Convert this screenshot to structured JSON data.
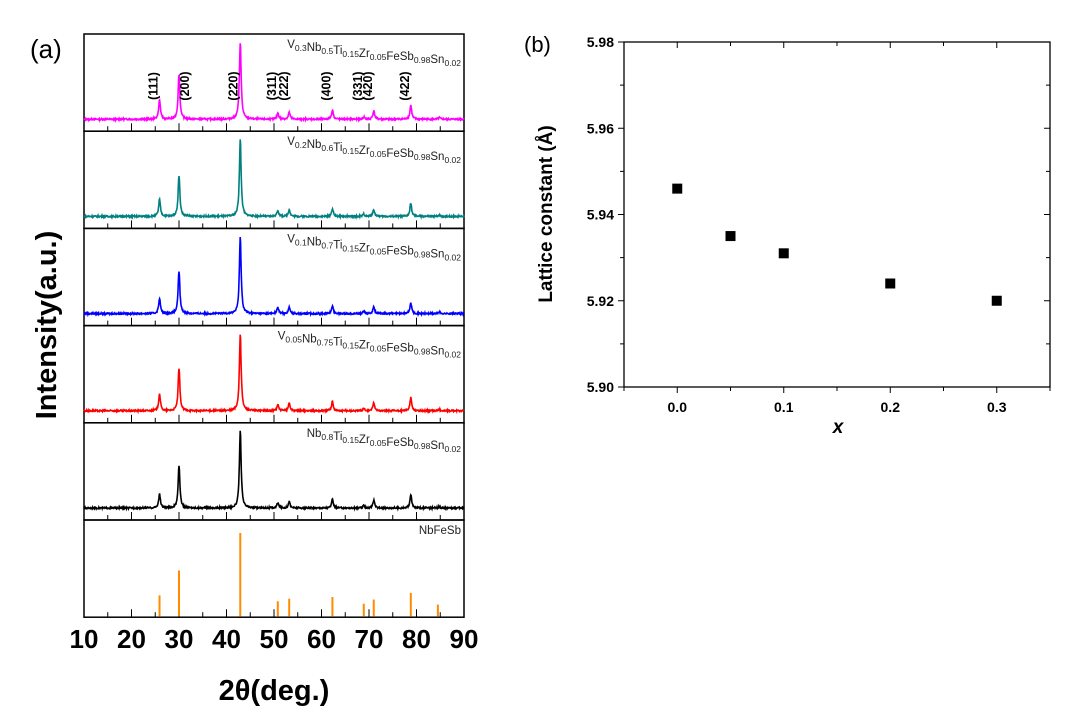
{
  "chart_data": [
    {
      "panel_label": "(a)",
      "type": "line",
      "xlabel": "2θ(deg.)",
      "ylabel": "Intensity(a.u.)",
      "xlim": [
        10,
        90
      ],
      "xticks": [
        10,
        20,
        30,
        40,
        50,
        60,
        70,
        80,
        90
      ],
      "grid": false,
      "stacked_panels": true,
      "miller_indices": [
        {
          "label": "(111)",
          "x": 25.9
        },
        {
          "label": "(200)",
          "x": 30.0
        },
        {
          "label": "(220)",
          "x": 42.9
        },
        {
          "label": "(311)",
          "x": 50.8
        },
        {
          "label": "(222)",
          "x": 53.2
        },
        {
          "label": "(400)",
          "x": 62.3
        },
        {
          "label": "(331)",
          "x": 68.9
        },
        {
          "label": "(420)",
          "x": 71.0
        },
        {
          "label": "(422)",
          "x": 78.8
        }
      ],
      "series": [
        {
          "name_parts": [
            [
              "V",
              "0.3"
            ],
            [
              "Nb",
              "0.5"
            ],
            [
              "Ti",
              "0.15"
            ],
            [
              "Zr",
              "0.05"
            ],
            [
              "FeSb",
              "0.98"
            ],
            [
              "Sn",
              "0.02"
            ]
          ],
          "color": "#ff00ff",
          "style": "pattern",
          "peaks": [
            [
              25.9,
              0.25
            ],
            [
              30.0,
              0.58
            ],
            [
              42.9,
              1.0
            ],
            [
              50.8,
              0.08
            ],
            [
              53.2,
              0.09
            ],
            [
              62.3,
              0.12
            ],
            [
              68.9,
              0.03
            ],
            [
              71.0,
              0.11
            ],
            [
              78.8,
              0.18
            ],
            [
              84.8,
              0.02
            ]
          ]
        },
        {
          "name_parts": [
            [
              "V",
              "0.2"
            ],
            [
              "Nb",
              "0.6"
            ],
            [
              "Ti",
              "0.15"
            ],
            [
              "Zr",
              "0.05"
            ],
            [
              "FeSb",
              "0.98"
            ],
            [
              "Sn",
              "0.02"
            ]
          ],
          "color": "#008080",
          "style": "pattern",
          "peaks": [
            [
              25.9,
              0.22
            ],
            [
              30.0,
              0.53
            ],
            [
              42.9,
              1.0
            ],
            [
              50.8,
              0.08
            ],
            [
              53.2,
              0.09
            ],
            [
              62.3,
              0.1
            ],
            [
              68.9,
              0.03
            ],
            [
              71.0,
              0.09
            ],
            [
              78.8,
              0.17
            ],
            [
              84.8,
              0.02
            ]
          ]
        },
        {
          "name_parts": [
            [
              "V",
              "0.1"
            ],
            [
              "Nb",
              "0.7"
            ],
            [
              "Ti",
              "0.15"
            ],
            [
              "Zr",
              "0.05"
            ],
            [
              "FeSb",
              "0.98"
            ],
            [
              "Sn",
              "0.02"
            ]
          ],
          "color": "#0000ff",
          "style": "pattern",
          "peaks": [
            [
              25.9,
              0.2
            ],
            [
              30.0,
              0.55
            ],
            [
              42.9,
              1.0
            ],
            [
              50.8,
              0.08
            ],
            [
              53.2,
              0.08
            ],
            [
              62.3,
              0.1
            ],
            [
              68.9,
              0.03
            ],
            [
              71.0,
              0.09
            ],
            [
              78.8,
              0.14
            ],
            [
              84.8,
              0.02
            ]
          ]
        },
        {
          "name_parts": [
            [
              "V",
              "0.05"
            ],
            [
              "Nb",
              "0.75"
            ],
            [
              "Ti",
              "0.15"
            ],
            [
              "Zr",
              "0.05"
            ],
            [
              "FeSb",
              "0.98"
            ],
            [
              "Sn",
              "0.02"
            ]
          ],
          "color": "#ff0000",
          "style": "pattern",
          "peaks": [
            [
              25.9,
              0.22
            ],
            [
              30.0,
              0.55
            ],
            [
              42.9,
              1.0
            ],
            [
              50.8,
              0.08
            ],
            [
              53.2,
              0.1
            ],
            [
              62.3,
              0.12
            ],
            [
              68.9,
              0.03
            ],
            [
              71.0,
              0.1
            ],
            [
              78.8,
              0.17
            ],
            [
              84.8,
              0.02
            ]
          ]
        },
        {
          "name_parts": [
            [
              "Nb",
              "0.8"
            ],
            [
              "Ti",
              "0.15"
            ],
            [
              "Zr",
              "0.05"
            ],
            [
              "FeSb",
              "0.98"
            ],
            [
              "Sn",
              "0.02"
            ]
          ],
          "color": "#000000",
          "style": "pattern",
          "peaks": [
            [
              25.9,
              0.18
            ],
            [
              30.0,
              0.55
            ],
            [
              42.9,
              1.0
            ],
            [
              50.8,
              0.07
            ],
            [
              53.2,
              0.08
            ],
            [
              62.3,
              0.11
            ],
            [
              68.9,
              0.03
            ],
            [
              71.0,
              0.1
            ],
            [
              78.8,
              0.17
            ],
            [
              84.8,
              0.02
            ]
          ]
        },
        {
          "name_parts": [
            [
              "NbFeSb",
              ""
            ]
          ],
          "color": "#ff8c00",
          "style": "sticks",
          "peaks": [
            [
              25.9,
              0.25
            ],
            [
              30.0,
              0.55
            ],
            [
              42.9,
              1.0
            ],
            [
              50.8,
              0.18
            ],
            [
              53.2,
              0.21
            ],
            [
              62.3,
              0.23
            ],
            [
              68.9,
              0.15
            ],
            [
              71.0,
              0.2
            ],
            [
              78.8,
              0.28
            ],
            [
              84.5,
              0.14
            ]
          ]
        }
      ]
    },
    {
      "panel_label": "(b)",
      "type": "scatter",
      "xlabel": "x",
      "ylabel": "Lattice constant (Å)",
      "xlim": [
        -0.05,
        0.35
      ],
      "ylim": [
        5.9,
        5.98
      ],
      "xticks": [
        "0.0",
        "0.1",
        "0.2",
        "0.3"
      ],
      "yticks": [
        "5.90",
        "5.92",
        "5.94",
        "5.96",
        "5.98"
      ],
      "grid": false,
      "marker": "square",
      "color": "#000000",
      "x": [
        0.0,
        0.05,
        0.1,
        0.2,
        0.3
      ],
      "y": [
        5.946,
        5.935,
        5.931,
        5.924,
        5.92
      ]
    }
  ]
}
